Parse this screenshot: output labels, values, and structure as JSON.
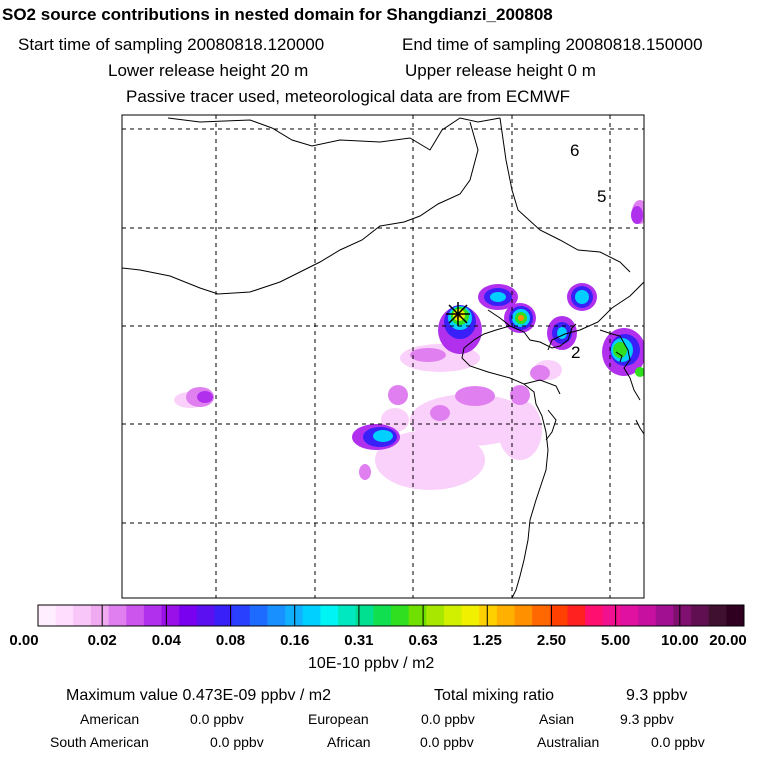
{
  "header": {
    "title": "SO2 source contributions in nested domain for Shangdianzi_200808",
    "start_time": "Start time of sampling 20080818.120000",
    "end_time": "End time of sampling 20080818.150000",
    "lower_height": "Lower release height   20 m",
    "upper_height": "Upper release height    0 m",
    "tracer_note": "Passive tracer used, meteorological data are from ECMWF"
  },
  "map": {
    "contour_labels": [
      "6",
      "5",
      "2"
    ],
    "colors": {
      "frame": "#000000",
      "grid": "#000000",
      "coast": "#000000",
      "marker": "#000000"
    }
  },
  "colorbar": {
    "colors": [
      "#ffeeff",
      "#ffddff",
      "#f9c6f9",
      "#f0aaf0",
      "#e080f0",
      "#cc55ee",
      "#b030ee",
      "#9a10e8",
      "#7a00f0",
      "#5a10f0",
      "#3a20f8",
      "#2a40ff",
      "#1e6cff",
      "#1890ff",
      "#10b0ff",
      "#00d0ff",
      "#00f4f4",
      "#00e8c0",
      "#00e090",
      "#10e050",
      "#30e020",
      "#70e000",
      "#a8e800",
      "#d0f000",
      "#f0f000",
      "#ffd000",
      "#ffb000",
      "#ff9000",
      "#ff6800",
      "#ff4000",
      "#ff2020",
      "#ff1070",
      "#f01090",
      "#e010a0",
      "#c810a0",
      "#a01090",
      "#801070",
      "#601050",
      "#401030",
      "#300020"
    ],
    "labels": [
      "0.00",
      "0.02",
      "0.04",
      "0.08",
      "0.16",
      "0.31",
      "0.63",
      "1.25",
      "2.50",
      "5.00",
      "10.00",
      "20.00"
    ],
    "unit": "10E-10 ppbv / m2"
  },
  "stats": {
    "max_value": "Maximum value  0.473E-09 ppbv / m2",
    "total_mixing": "Total mixing ratio",
    "total_mixing_value": "9.3 ppbv",
    "regions": [
      {
        "name": "American",
        "value": "0.0 ppbv"
      },
      {
        "name": "European",
        "value": "0.0 ppbv"
      },
      {
        "name": "Asian",
        "value": "9.3 ppbv"
      },
      {
        "name": "South American",
        "value": "0.0 ppbv"
      },
      {
        "name": "African",
        "value": "0.0 ppbv"
      },
      {
        "name": "Australian",
        "value": "0.0 ppbv"
      }
    ]
  }
}
